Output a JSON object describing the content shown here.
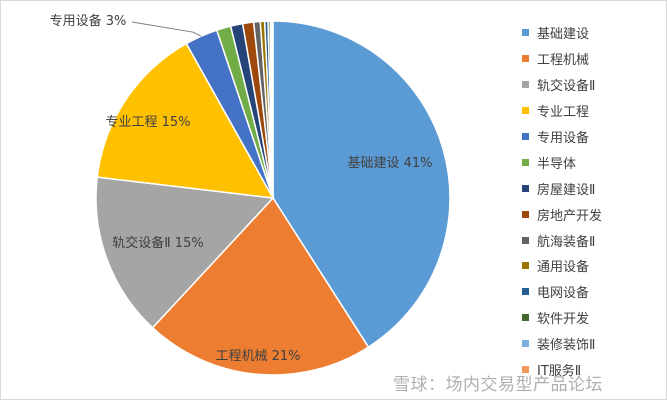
{
  "chart_data": {
    "type": "pie",
    "slices": [
      {
        "label": "基础建设",
        "value": 41,
        "color": "#5b9bd5",
        "data_label": "基础建设 41%"
      },
      {
        "label": "工程机械",
        "value": 21,
        "color": "#ed7d31",
        "data_label": "工程机械 21%"
      },
      {
        "label": "轨交设备Ⅱ",
        "value": 15,
        "color": "#a5a5a5",
        "data_label": "轨交设备Ⅱ 15%"
      },
      {
        "label": "专业工程",
        "value": 15,
        "color": "#ffc000",
        "data_label": "专业工程 15%"
      },
      {
        "label": "专用设备",
        "value": 3,
        "color": "#4472c4",
        "data_label": "专用设备 3%"
      },
      {
        "label": "半导体",
        "value": 1.3,
        "color": "#70ad47",
        "data_label": ""
      },
      {
        "label": "房屋建设Ⅱ",
        "value": 1.1,
        "color": "#264478",
        "data_label": ""
      },
      {
        "label": "房地产开发",
        "value": 1.0,
        "color": "#9e480e",
        "data_label": ""
      },
      {
        "label": "航海装备Ⅱ",
        "value": 0.6,
        "color": "#636363",
        "data_label": ""
      },
      {
        "label": "通用设备",
        "value": 0.4,
        "color": "#997300",
        "data_label": ""
      },
      {
        "label": "电网设备",
        "value": 0.3,
        "color": "#255e91",
        "data_label": ""
      },
      {
        "label": "软件开发",
        "value": 0.2,
        "color": "#43682b",
        "data_label": ""
      },
      {
        "label": "装修装饰Ⅱ",
        "value": 0.15,
        "color": "#7cafdd",
        "data_label": ""
      },
      {
        "label": "IT服务Ⅱ",
        "value": 0.1,
        "color": "#f1975a",
        "data_label": ""
      }
    ],
    "legend_position": "right"
  },
  "watermark": "雪球：场内交易型产品论坛"
}
